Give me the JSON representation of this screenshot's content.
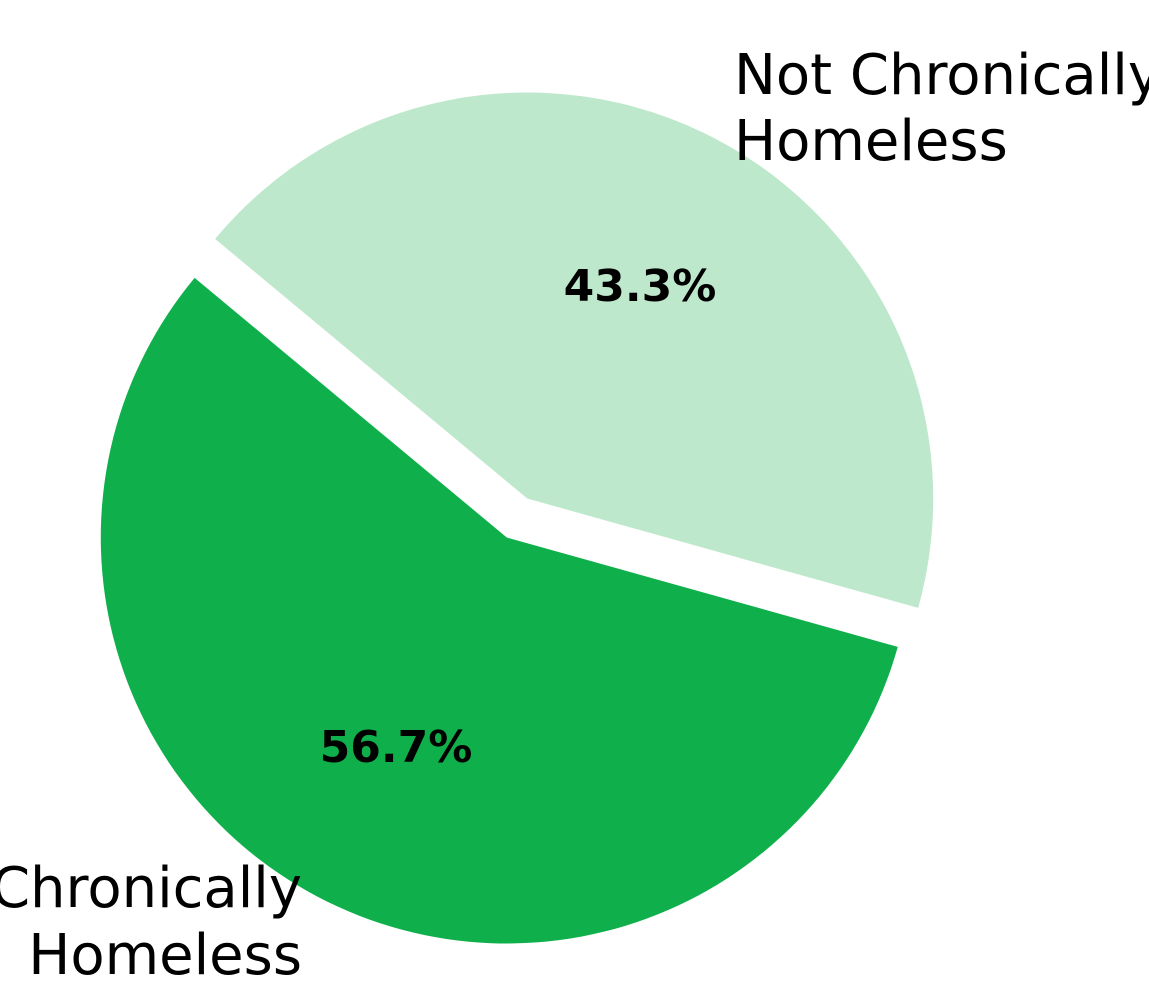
{
  "chart_data": {
    "type": "pie",
    "title": "",
    "slices": [
      {
        "label_lines": [
          "Chronically",
          "Homeless"
        ],
        "value": 56.7,
        "pct_label": "56.7%",
        "color": "#0fb04b"
      },
      {
        "label_lines": [
          "Not Chronically",
          "Homeless"
        ],
        "value": 43.3,
        "pct_label": "43.3%",
        "color": "#bee8cb"
      }
    ],
    "exploded": true
  }
}
